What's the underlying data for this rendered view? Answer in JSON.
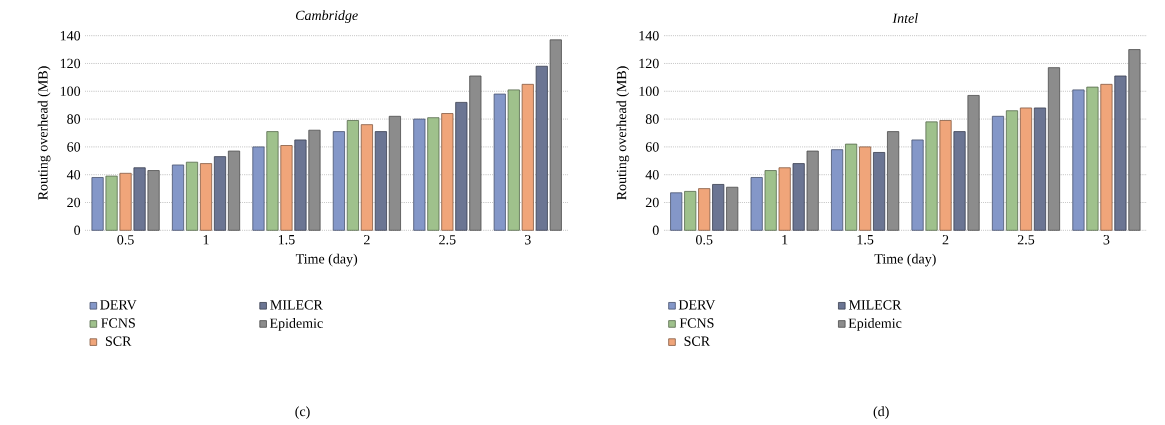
{
  "chart_data": [
    {
      "type": "bar",
      "title": "Cambridge",
      "xlabel": "Time (day)",
      "ylabel": "Routing overhead (MB)",
      "annotations": [
        "(c)"
      ],
      "categories": [
        "0.5",
        "1",
        "1.5",
        "2",
        "2.5",
        "3"
      ],
      "series": [
        {
          "name": "DERV",
          "color": "#8497c8",
          "values": [
            38,
            47,
            60,
            71,
            80,
            98
          ]
        },
        {
          "name": "FCNS",
          "color": "#9fc18c",
          "values": [
            39,
            49,
            71,
            79,
            81,
            101
          ]
        },
        {
          "name": "SCR",
          "color": "#f0a57a",
          "values": [
            41,
            48,
            61,
            76,
            84,
            105
          ]
        },
        {
          "name": "MILECR",
          "color": "#6b7593",
          "values": [
            45,
            53,
            65,
            71,
            92,
            118
          ]
        },
        {
          "name": "Epidemic",
          "color": "#8c8c8c",
          "values": [
            43,
            57,
            72,
            82,
            111,
            137
          ]
        }
      ],
      "ylim": [
        0,
        140
      ],
      "yticks": [
        0,
        20,
        40,
        60,
        80,
        100,
        120,
        140
      ],
      "grid": "y",
      "legend": "bottom"
    },
    {
      "type": "bar",
      "title": "Intel",
      "xlabel": "Time (day)",
      "ylabel": "Routing overhead (MB)",
      "annotations": [
        "(d)"
      ],
      "categories": [
        "0.5",
        "1",
        "1.5",
        "2",
        "2.5",
        "3"
      ],
      "series": [
        {
          "name": "DERV",
          "color": "#8497c8",
          "values": [
            27,
            38,
            58,
            65,
            82,
            101
          ]
        },
        {
          "name": "FCNS",
          "color": "#9fc18c",
          "values": [
            28,
            43,
            62,
            78,
            86,
            103
          ]
        },
        {
          "name": "SCR",
          "color": "#f0a57a",
          "values": [
            30,
            45,
            60,
            79,
            88,
            105
          ]
        },
        {
          "name": "MILECR",
          "color": "#6b7593",
          "values": [
            33,
            48,
            56,
            71,
            88,
            111
          ]
        },
        {
          "name": "Epidemic",
          "color": "#8c8c8c",
          "values": [
            31,
            57,
            71,
            97,
            117,
            130
          ]
        }
      ],
      "ylim": [
        0,
        140
      ],
      "yticks": [
        0,
        20,
        40,
        60,
        80,
        100,
        120,
        140
      ],
      "grid": "y",
      "legend": "bottom"
    }
  ]
}
